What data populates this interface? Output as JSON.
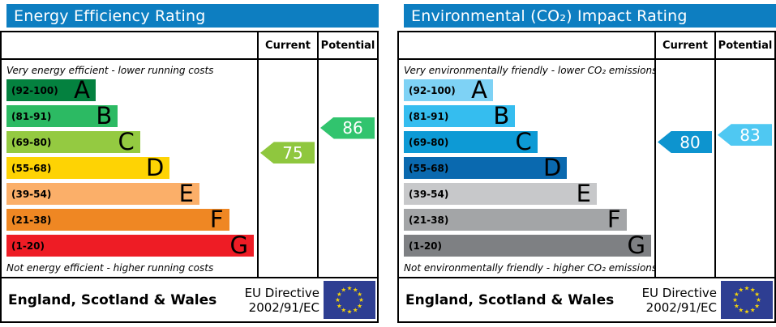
{
  "colors": {
    "header_bg": "#0d7ec1",
    "border": "#000000",
    "flag_bg": "#2e3e92",
    "flag_star": "#f5d40a"
  },
  "chart_data": [
    {
      "type": "bar",
      "chart": "energy-efficiency-rating",
      "title": "Energy Efficiency Rating",
      "columns": {
        "current": "Current",
        "potential": "Potential"
      },
      "top_note": "Very energy efficient - lower running costs",
      "bottom_note": "Not energy efficient - higher running costs",
      "bands": [
        {
          "range": "(92-100)",
          "min": 92,
          "max": 100,
          "letter": "A",
          "color": "#04813f",
          "width_pct": 34
        },
        {
          "range": "(81-91)",
          "min": 81,
          "max": 91,
          "letter": "B",
          "color": "#2cba63",
          "width_pct": 45
        },
        {
          "range": "(69-80)",
          "min": 69,
          "max": 80,
          "letter": "C",
          "color": "#94ca41",
          "width_pct": 54
        },
        {
          "range": "(55-68)",
          "min": 55,
          "max": 68,
          "letter": "D",
          "color": "#fed304",
          "width_pct": 66
        },
        {
          "range": "(39-54)",
          "min": 39,
          "max": 54,
          "letter": "E",
          "color": "#fbaf69",
          "width_pct": 78
        },
        {
          "range": "(21-38)",
          "min": 21,
          "max": 38,
          "letter": "F",
          "color": "#ef8723",
          "width_pct": 90
        },
        {
          "range": "(1-20)",
          "min": 1,
          "max": 20,
          "letter": "G",
          "color": "#ee1c25",
          "width_pct": 100
        }
      ],
      "current": {
        "value": 75,
        "color": "#8fc73e"
      },
      "potential": {
        "value": 86,
        "color": "#31c46e"
      },
      "footer": {
        "region": "England, Scotland & Wales",
        "directive": [
          "EU Directive",
          "2002/91/EC"
        ]
      }
    },
    {
      "type": "bar",
      "chart": "environmental-co2-impact-rating",
      "title": "Environmental (CO₂) Impact Rating",
      "columns": {
        "current": "Current",
        "potential": "Potential"
      },
      "top_note": "Very environmentally friendly - lower CO₂ emissions",
      "bottom_note": "Not environmentally friendly - higher CO₂ emissions",
      "bands": [
        {
          "range": "(92-100)",
          "min": 92,
          "max": 100,
          "letter": "A",
          "color": "#7ed2f5",
          "width_pct": 34
        },
        {
          "range": "(81-91)",
          "min": 81,
          "max": 91,
          "letter": "B",
          "color": "#35bdef",
          "width_pct": 45
        },
        {
          "range": "(69-80)",
          "min": 69,
          "max": 80,
          "letter": "C",
          "color": "#0d9ad5",
          "width_pct": 54
        },
        {
          "range": "(55-68)",
          "min": 55,
          "max": 68,
          "letter": "D",
          "color": "#0a69af",
          "width_pct": 66
        },
        {
          "range": "(39-54)",
          "min": 39,
          "max": 54,
          "letter": "E",
          "color": "#c7c8ca",
          "width_pct": 78
        },
        {
          "range": "(21-38)",
          "min": 21,
          "max": 38,
          "letter": "F",
          "color": "#a3a5a7",
          "width_pct": 90
        },
        {
          "range": "(1-20)",
          "min": 1,
          "max": 20,
          "letter": "G",
          "color": "#7e8083",
          "width_pct": 100
        }
      ],
      "current": {
        "value": 80,
        "color": "#0d94cf"
      },
      "potential": {
        "value": 83,
        "color": "#4fc8f2"
      },
      "footer": {
        "region": "England, Scotland & Wales",
        "directive": [
          "EU Directive",
          "2002/91/EC"
        ]
      }
    }
  ]
}
